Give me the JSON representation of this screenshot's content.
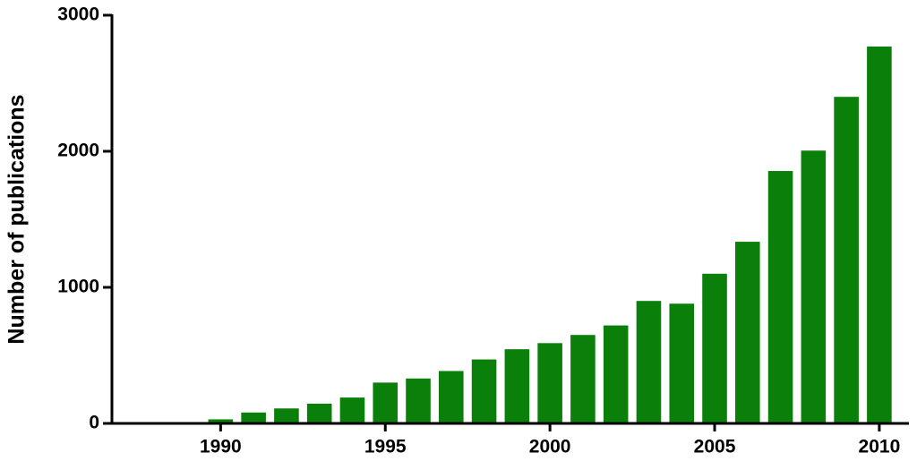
{
  "chart_data": {
    "type": "bar",
    "y_label": "Number of publications",
    "x": [
      1987,
      1988,
      1989,
      1990,
      1991,
      1992,
      1993,
      1994,
      1995,
      1996,
      1997,
      1998,
      1999,
      2000,
      2001,
      2002,
      2003,
      2004,
      2005,
      2006,
      2007,
      2008,
      2009,
      2010
    ],
    "values": [
      5,
      5,
      5,
      30,
      80,
      110,
      145,
      190,
      300,
      330,
      385,
      470,
      545,
      590,
      650,
      720,
      900,
      880,
      1100,
      1335,
      1855,
      2005,
      2400,
      2770
    ],
    "color": "#0a7f0a",
    "xlim": [
      1986.7,
      2010.9
    ],
    "xticks": [
      1990,
      1995,
      2000,
      2005,
      2010
    ],
    "ylim": [
      0,
      3000
    ],
    "yticks": [
      0,
      1000,
      2000,
      3000
    ],
    "grid": false
  }
}
